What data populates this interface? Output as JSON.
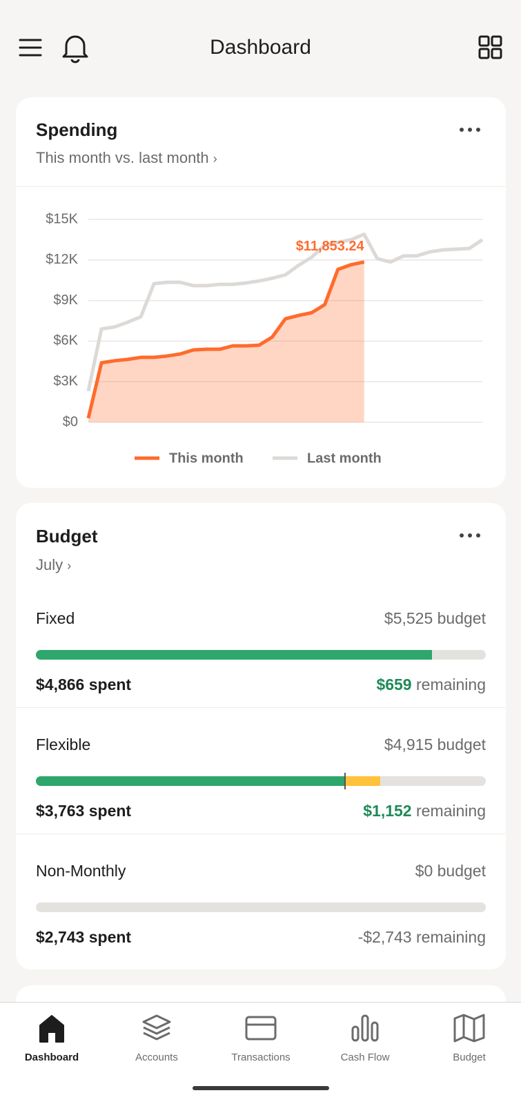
{
  "header": {
    "title": "Dashboard"
  },
  "spending": {
    "title": "Spending",
    "subtitle": "This month vs. last month"
  },
  "chart_data": {
    "type": "line",
    "x": [
      1,
      2,
      3,
      4,
      5,
      6,
      7,
      8,
      9,
      10,
      11,
      12,
      13,
      14,
      15,
      16,
      17,
      18,
      19,
      20,
      21,
      22,
      23,
      24,
      25,
      26,
      27,
      28,
      29,
      30,
      31
    ],
    "xlim": [
      1,
      31
    ],
    "series": [
      {
        "name": "This month",
        "color": "#ff6b2c",
        "values": [
          300,
          4400,
          4550,
          4650,
          4800,
          4800,
          4900,
          5050,
          5350,
          5400,
          5400,
          5650,
          5650,
          5700,
          6300,
          7650,
          7900,
          8100,
          8700,
          11300,
          11650,
          11853.24,
          null,
          null,
          null,
          null,
          null,
          null,
          null,
          null,
          null
        ],
        "value_labels": [
          null,
          null,
          null,
          null,
          null,
          null,
          null,
          null,
          null,
          null,
          null,
          null,
          null,
          null,
          null,
          null,
          null,
          null,
          null,
          null,
          null,
          "$11,853.24",
          null,
          null,
          null,
          null,
          null,
          null,
          null,
          null,
          null
        ],
        "area": true
      },
      {
        "name": "Last month",
        "color": "#dcd9d6",
        "values": [
          2300,
          6900,
          7050,
          7400,
          7800,
          10250,
          10350,
          10350,
          10100,
          10100,
          10200,
          10200,
          10300,
          10450,
          10650,
          10900,
          11600,
          12200,
          13100,
          13300,
          13500,
          13900,
          12100,
          11850,
          12300,
          12300,
          12600,
          12750,
          12800,
          12850,
          13500
        ]
      }
    ],
    "ylim": [
      0,
      15000
    ],
    "yticks": [
      {
        "value": 0,
        "label": "$0"
      },
      {
        "value": 3000,
        "label": "$3K"
      },
      {
        "value": 6000,
        "label": "$6K"
      },
      {
        "value": 9000,
        "label": "$9K"
      },
      {
        "value": 12000,
        "label": "$12K"
      },
      {
        "value": 15000,
        "label": "$15K"
      }
    ],
    "grid": true
  },
  "budget": {
    "title": "Budget",
    "subtitle": "July",
    "rows": [
      {
        "name": "Fixed",
        "budget_label": "$5,525 budget",
        "spent_label": "$4,866 spent",
        "remaining_amount": "$659",
        "remaining_word": "remaining",
        "remaining_color": "#1f8a57",
        "budget": 5525,
        "spent": 4866
      },
      {
        "name": "Flexible",
        "budget_label": "$4,915 budget",
        "spent_label": "$3,763 spent",
        "remaining_amount": "$1,152",
        "remaining_word": "remaining",
        "remaining_color": "#1f8a57",
        "budget": 4915,
        "spent": 3763,
        "pace": 3370
      },
      {
        "name": "Non-Monthly",
        "budget_label": "$0 budget",
        "spent_label": "$2,743 spent",
        "remaining_amount": "-$2,743",
        "remaining_word": "remaining",
        "remaining_color": "#6b6b6b",
        "budget": 0,
        "spent": 2743
      }
    ]
  },
  "nav": {
    "items": [
      "Dashboard",
      "Accounts",
      "Transactions",
      "Cash Flow",
      "Budget"
    ],
    "active": 0
  }
}
